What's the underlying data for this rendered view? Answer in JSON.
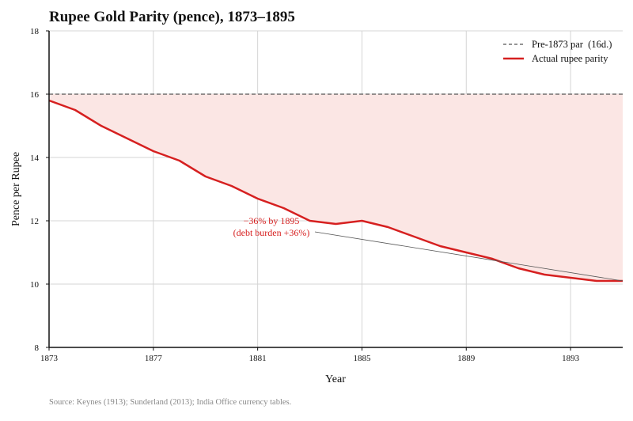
{
  "chart_data": {
    "type": "line",
    "title": "Rupee Gold Parity (pence), 1873–1895",
    "xlabel": "Year",
    "ylabel": "Pence per Rupee",
    "xlim": [
      1873,
      1895
    ],
    "ylim": [
      8,
      18
    ],
    "xticks": [
      1873,
      1877,
      1881,
      1885,
      1889,
      1893
    ],
    "yticks": [
      8,
      10,
      12,
      14,
      16,
      18
    ],
    "grid": true,
    "legend_position": "top-right",
    "series": [
      {
        "name": "Pre-1873 par  (16d.)",
        "style": "dashed",
        "color": "#555555",
        "x": [
          1873,
          1895
        ],
        "y": [
          16,
          16
        ]
      },
      {
        "name": "Actual rupee parity",
        "style": "solid",
        "color": "#d62020",
        "x": [
          1873,
          1874,
          1875,
          1876,
          1877,
          1878,
          1879,
          1880,
          1881,
          1882,
          1883,
          1884,
          1885,
          1886,
          1887,
          1888,
          1889,
          1890,
          1891,
          1892,
          1893,
          1894,
          1895
        ],
        "y": [
          15.8,
          15.5,
          15.0,
          14.6,
          14.2,
          13.9,
          13.4,
          13.1,
          12.7,
          12.4,
          12.0,
          11.9,
          12.0,
          11.8,
          11.5,
          11.2,
          11.0,
          10.8,
          10.5,
          10.3,
          10.2,
          10.1,
          10.1
        ]
      }
    ],
    "fill_between": {
      "upper": 16,
      "color": "#fbe6e4"
    },
    "annotation": {
      "lines": [
        "−36%  by 1895",
        "(debt burden +36%)"
      ],
      "color": "#d62020",
      "points_to": {
        "x": 1895,
        "y": 10.1
      }
    }
  },
  "source": "Source: Keynes (1913); Sunderland (2013); India Office currency tables."
}
